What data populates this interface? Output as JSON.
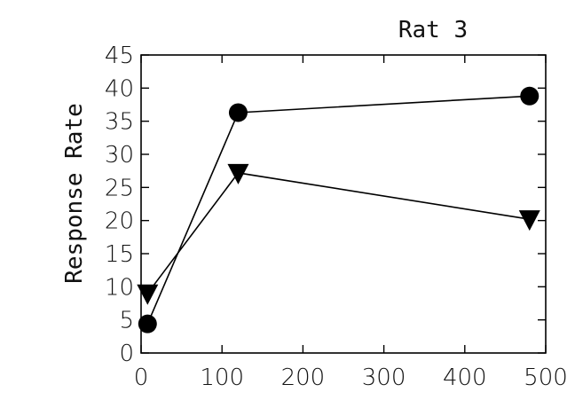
{
  "chart_data": {
    "type": "line",
    "title": "Rat 3",
    "xlabel": "",
    "ylabel": "Response Rate",
    "xlim": [
      0,
      500
    ],
    "ylim": [
      0,
      45
    ],
    "xticks": [
      0,
      100,
      200,
      300,
      400,
      500
    ],
    "yticks": [
      0,
      5,
      10,
      15,
      20,
      25,
      30,
      35,
      40,
      45
    ],
    "grid": false,
    "legend": "none",
    "series": [
      {
        "marker": "circle",
        "color": "#000000",
        "x": [
          8,
          120,
          480
        ],
        "y": [
          4.4,
          36.3,
          38.8
        ]
      },
      {
        "marker": "triangle-down",
        "color": "#000000",
        "x": [
          8,
          120,
          480
        ],
        "y": [
          9,
          27.2,
          20.2
        ]
      }
    ]
  }
}
